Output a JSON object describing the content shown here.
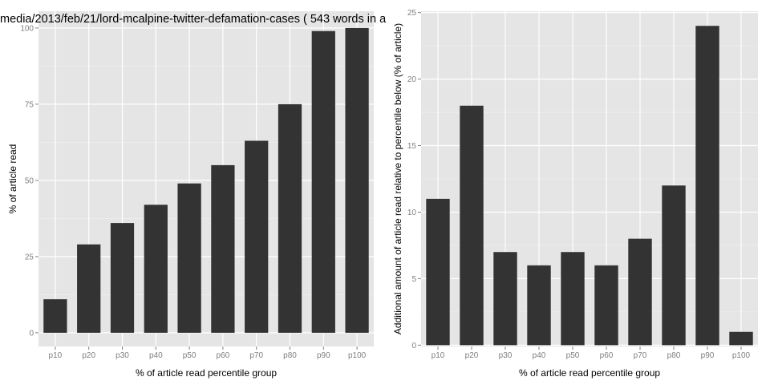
{
  "chart_data": [
    {
      "type": "bar",
      "title": "media/2013/feb/21/lord-mcalpine-twitter-defamation-cases ( 543 words in a",
      "xlabel": "% of article read percentile group",
      "ylabel": "% of article read",
      "categories": [
        "p10",
        "p20",
        "p30",
        "p40",
        "p50",
        "p60",
        "p70",
        "p80",
        "p90",
        "p100"
      ],
      "values": [
        11,
        29,
        36,
        42,
        49,
        55,
        63,
        75,
        99,
        100
      ],
      "ylim": [
        -4.5,
        105.5
      ],
      "yticks": [
        0,
        25,
        50,
        75,
        100
      ],
      "grid": true,
      "colors": {
        "bar": "#333333",
        "panel": "#e5e5e5",
        "grid": "#ffffff"
      }
    },
    {
      "type": "bar",
      "title": "",
      "xlabel": "% of article read percentile group",
      "ylabel": "Additional amount of article read relative to percentile below (% of article)",
      "categories": [
        "p10",
        "p20",
        "p30",
        "p40",
        "p50",
        "p60",
        "p70",
        "p80",
        "p90",
        "p100"
      ],
      "values": [
        11,
        18,
        7,
        6,
        7,
        6,
        8,
        12,
        24,
        1
      ],
      "ylim": [
        -0.1,
        25.1
      ],
      "yticks": [
        0,
        5,
        10,
        15,
        20,
        25
      ],
      "grid": true,
      "colors": {
        "bar": "#333333",
        "panel": "#e5e5e5",
        "grid": "#ffffff"
      }
    }
  ]
}
